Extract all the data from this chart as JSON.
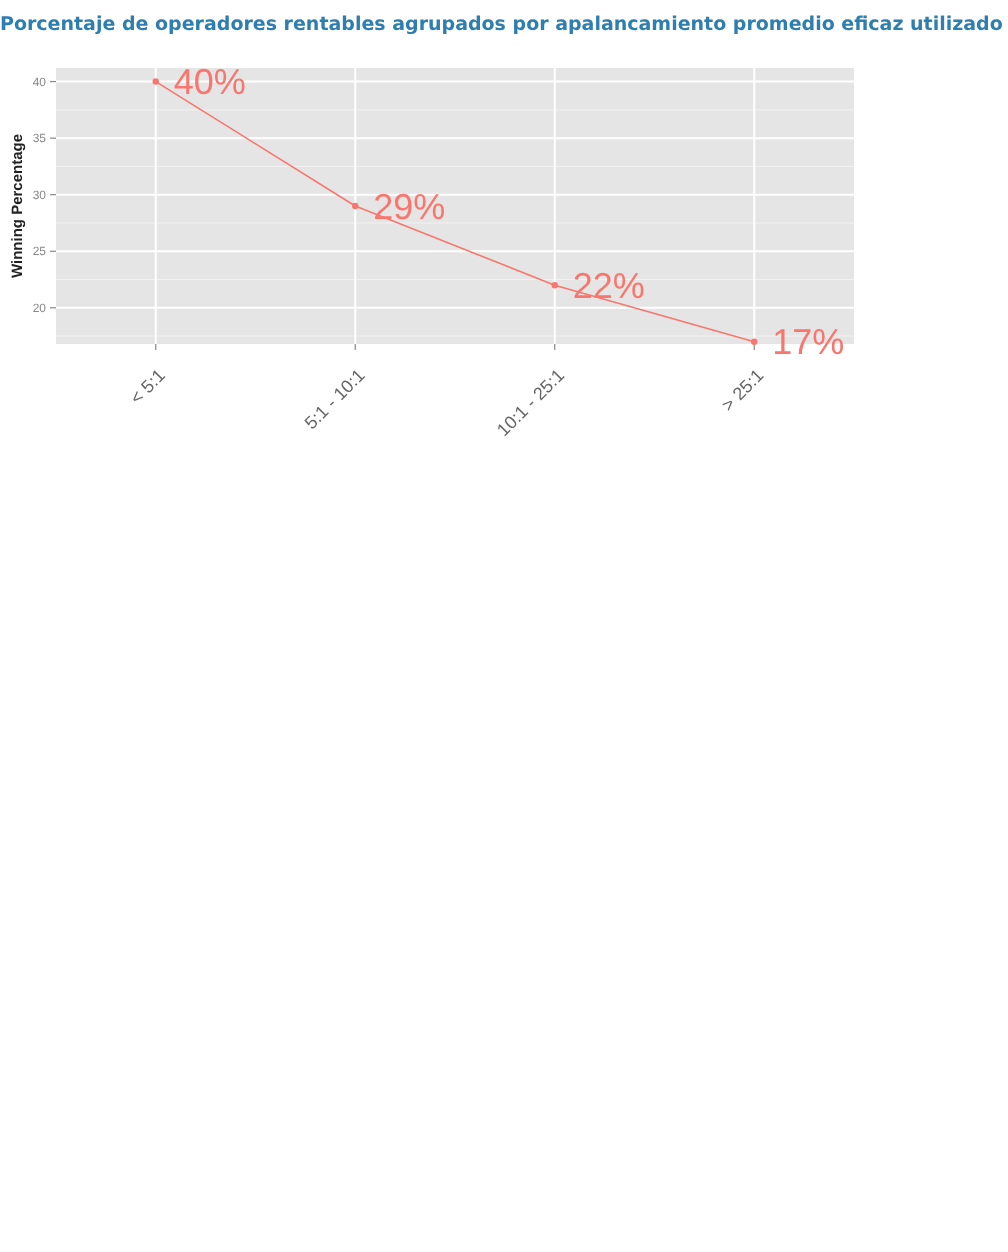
{
  "chart_data": {
    "type": "line",
    "title": "Porcentaje de operadores rentables agrupados por apalancamiento promedio eficaz utilizado",
    "ylabel": "Winning Percentage",
    "categories": [
      "< 5:1",
      "5:1 - 10:1",
      "10:1 - 25:1",
      "> 25:1"
    ],
    "series": [
      {
        "color": "#f8766d",
        "values": [
          40,
          29,
          22,
          17
        ],
        "value_labels": [
          "40%",
          "29%",
          "22%",
          "17%"
        ]
      }
    ],
    "ylim": [
      16.8,
      41.2
    ],
    "yticks": [
      20,
      25,
      30,
      35,
      40
    ],
    "grid": true,
    "marker": "circle",
    "line_style": "solid"
  }
}
